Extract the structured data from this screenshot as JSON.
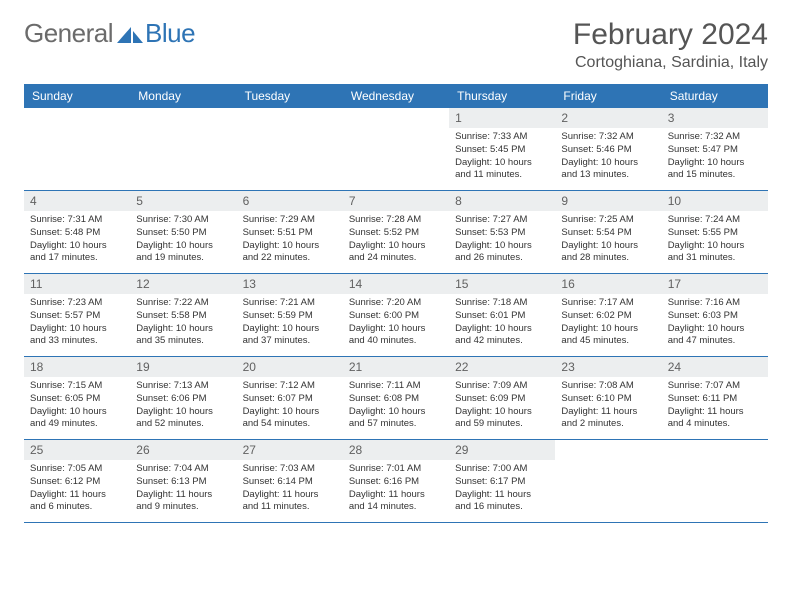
{
  "brand": {
    "part1": "General",
    "part2": "Blue"
  },
  "title": {
    "month": "February 2024",
    "location": "Cortoghiana, Sardinia, Italy"
  },
  "colors": {
    "accent": "#2e74b5",
    "header_bg": "#2e74b5",
    "daynum_bg": "#eceeef",
    "text": "#333333"
  },
  "weekdays": [
    "Sunday",
    "Monday",
    "Tuesday",
    "Wednesday",
    "Thursday",
    "Friday",
    "Saturday"
  ],
  "grid": {
    "cols": 7,
    "rows": 5,
    "cells": [
      {
        "empty": true
      },
      {
        "empty": true
      },
      {
        "empty": true
      },
      {
        "empty": true
      },
      {
        "day": "1",
        "sunrise": "Sunrise: 7:33 AM",
        "sunset": "Sunset: 5:45 PM",
        "daylight": "Daylight: 10 hours and 11 minutes."
      },
      {
        "day": "2",
        "sunrise": "Sunrise: 7:32 AM",
        "sunset": "Sunset: 5:46 PM",
        "daylight": "Daylight: 10 hours and 13 minutes."
      },
      {
        "day": "3",
        "sunrise": "Sunrise: 7:32 AM",
        "sunset": "Sunset: 5:47 PM",
        "daylight": "Daylight: 10 hours and 15 minutes."
      },
      {
        "day": "4",
        "sunrise": "Sunrise: 7:31 AM",
        "sunset": "Sunset: 5:48 PM",
        "daylight": "Daylight: 10 hours and 17 minutes."
      },
      {
        "day": "5",
        "sunrise": "Sunrise: 7:30 AM",
        "sunset": "Sunset: 5:50 PM",
        "daylight": "Daylight: 10 hours and 19 minutes."
      },
      {
        "day": "6",
        "sunrise": "Sunrise: 7:29 AM",
        "sunset": "Sunset: 5:51 PM",
        "daylight": "Daylight: 10 hours and 22 minutes."
      },
      {
        "day": "7",
        "sunrise": "Sunrise: 7:28 AM",
        "sunset": "Sunset: 5:52 PM",
        "daylight": "Daylight: 10 hours and 24 minutes."
      },
      {
        "day": "8",
        "sunrise": "Sunrise: 7:27 AM",
        "sunset": "Sunset: 5:53 PM",
        "daylight": "Daylight: 10 hours and 26 minutes."
      },
      {
        "day": "9",
        "sunrise": "Sunrise: 7:25 AM",
        "sunset": "Sunset: 5:54 PM",
        "daylight": "Daylight: 10 hours and 28 minutes."
      },
      {
        "day": "10",
        "sunrise": "Sunrise: 7:24 AM",
        "sunset": "Sunset: 5:55 PM",
        "daylight": "Daylight: 10 hours and 31 minutes."
      },
      {
        "day": "11",
        "sunrise": "Sunrise: 7:23 AM",
        "sunset": "Sunset: 5:57 PM",
        "daylight": "Daylight: 10 hours and 33 minutes."
      },
      {
        "day": "12",
        "sunrise": "Sunrise: 7:22 AM",
        "sunset": "Sunset: 5:58 PM",
        "daylight": "Daylight: 10 hours and 35 minutes."
      },
      {
        "day": "13",
        "sunrise": "Sunrise: 7:21 AM",
        "sunset": "Sunset: 5:59 PM",
        "daylight": "Daylight: 10 hours and 37 minutes."
      },
      {
        "day": "14",
        "sunrise": "Sunrise: 7:20 AM",
        "sunset": "Sunset: 6:00 PM",
        "daylight": "Daylight: 10 hours and 40 minutes."
      },
      {
        "day": "15",
        "sunrise": "Sunrise: 7:18 AM",
        "sunset": "Sunset: 6:01 PM",
        "daylight": "Daylight: 10 hours and 42 minutes."
      },
      {
        "day": "16",
        "sunrise": "Sunrise: 7:17 AM",
        "sunset": "Sunset: 6:02 PM",
        "daylight": "Daylight: 10 hours and 45 minutes."
      },
      {
        "day": "17",
        "sunrise": "Sunrise: 7:16 AM",
        "sunset": "Sunset: 6:03 PM",
        "daylight": "Daylight: 10 hours and 47 minutes."
      },
      {
        "day": "18",
        "sunrise": "Sunrise: 7:15 AM",
        "sunset": "Sunset: 6:05 PM",
        "daylight": "Daylight: 10 hours and 49 minutes."
      },
      {
        "day": "19",
        "sunrise": "Sunrise: 7:13 AM",
        "sunset": "Sunset: 6:06 PM",
        "daylight": "Daylight: 10 hours and 52 minutes."
      },
      {
        "day": "20",
        "sunrise": "Sunrise: 7:12 AM",
        "sunset": "Sunset: 6:07 PM",
        "daylight": "Daylight: 10 hours and 54 minutes."
      },
      {
        "day": "21",
        "sunrise": "Sunrise: 7:11 AM",
        "sunset": "Sunset: 6:08 PM",
        "daylight": "Daylight: 10 hours and 57 minutes."
      },
      {
        "day": "22",
        "sunrise": "Sunrise: 7:09 AM",
        "sunset": "Sunset: 6:09 PM",
        "daylight": "Daylight: 10 hours and 59 minutes."
      },
      {
        "day": "23",
        "sunrise": "Sunrise: 7:08 AM",
        "sunset": "Sunset: 6:10 PM",
        "daylight": "Daylight: 11 hours and 2 minutes."
      },
      {
        "day": "24",
        "sunrise": "Sunrise: 7:07 AM",
        "sunset": "Sunset: 6:11 PM",
        "daylight": "Daylight: 11 hours and 4 minutes."
      },
      {
        "day": "25",
        "sunrise": "Sunrise: 7:05 AM",
        "sunset": "Sunset: 6:12 PM",
        "daylight": "Daylight: 11 hours and 6 minutes."
      },
      {
        "day": "26",
        "sunrise": "Sunrise: 7:04 AM",
        "sunset": "Sunset: 6:13 PM",
        "daylight": "Daylight: 11 hours and 9 minutes."
      },
      {
        "day": "27",
        "sunrise": "Sunrise: 7:03 AM",
        "sunset": "Sunset: 6:14 PM",
        "daylight": "Daylight: 11 hours and 11 minutes."
      },
      {
        "day": "28",
        "sunrise": "Sunrise: 7:01 AM",
        "sunset": "Sunset: 6:16 PM",
        "daylight": "Daylight: 11 hours and 14 minutes."
      },
      {
        "day": "29",
        "sunrise": "Sunrise: 7:00 AM",
        "sunset": "Sunset: 6:17 PM",
        "daylight": "Daylight: 11 hours and 16 minutes."
      },
      {
        "empty": true
      },
      {
        "empty": true
      }
    ]
  }
}
